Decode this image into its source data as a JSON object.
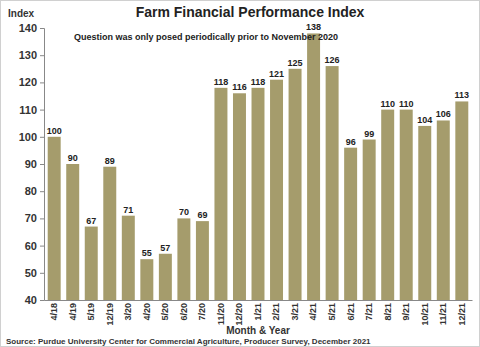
{
  "chart_data": {
    "type": "bar",
    "title": "Farm Financial Performance Index",
    "y_label": "Index",
    "x_label": "Month & Year",
    "annotation": "Question was only posed periodically prior to November 2020",
    "source": "Source: Purdue University Center for Commercial Agriculture, Producer Survey, December 2021",
    "categories": [
      "4/18",
      "4/19",
      "5/19",
      "12/19",
      "3/20",
      "4/20",
      "5/20",
      "6/20",
      "7/20",
      "11/20",
      "12/20",
      "1/21",
      "2/21",
      "3/21",
      "4/21",
      "5/21",
      "6/21",
      "7/21",
      "8/21",
      "9/21",
      "10/21",
      "11/21",
      "12/21"
    ],
    "values": [
      100,
      90,
      67,
      89,
      71,
      55,
      57,
      70,
      69,
      118,
      116,
      118,
      121,
      125,
      138,
      126,
      96,
      99,
      110,
      110,
      104,
      106,
      113
    ],
    "color": "#a59c6c",
    "ylim": [
      40,
      140
    ],
    "yticks": [
      40,
      50,
      60,
      70,
      80,
      90,
      100,
      110,
      120,
      130,
      140
    ],
    "grid": false,
    "data_labels": true
  }
}
